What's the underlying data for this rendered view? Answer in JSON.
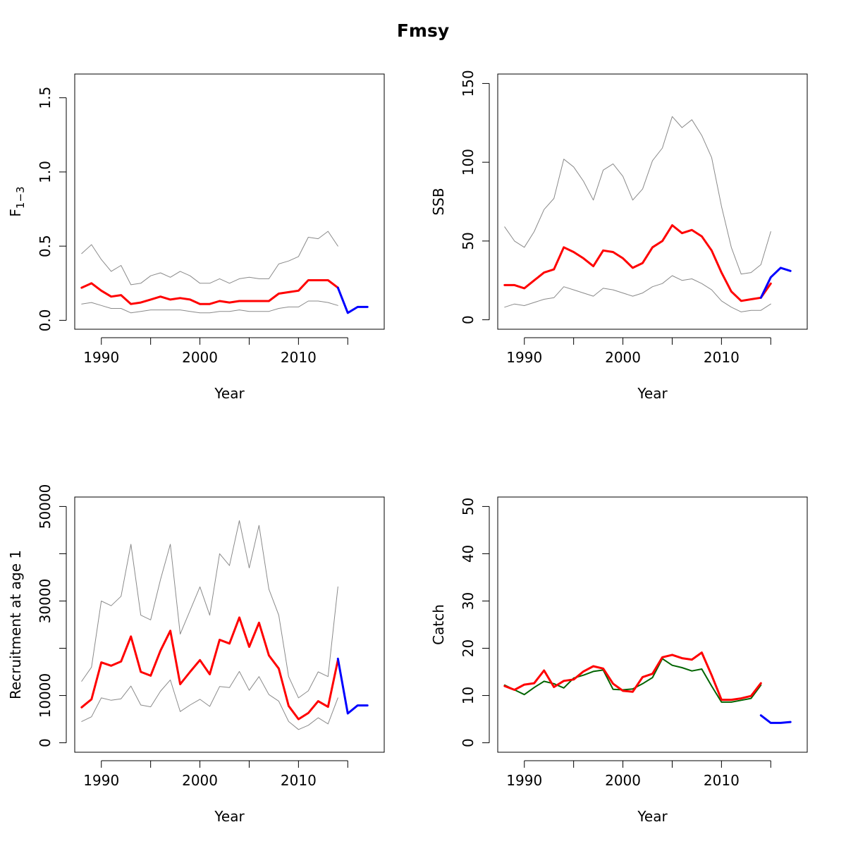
{
  "title": "Fmsy",
  "chart_data": [
    {
      "type": "line",
      "ylabel": "F",
      "ylabel_sub": "1−3",
      "xlabel": "Year",
      "xlim": [
        1987.3,
        2018.7
      ],
      "ylim": [
        -0.06,
        1.66
      ],
      "x_ticks": [
        1990,
        2000,
        2010
      ],
      "x_tick_labels": [
        "1990",
        "2000",
        "2010"
      ],
      "x_minor_ticks": [
        1995,
        2005,
        2015
      ],
      "y_ticks": [
        0,
        0.5,
        1,
        1.5
      ],
      "y_tick_labels": [
        "0.0",
        "0.5",
        "1.0",
        "1.5"
      ],
      "series": [
        {
          "role": "upper",
          "color": "#8a8a8a",
          "width": 1,
          "x": [
            1988,
            1989,
            1990,
            1991,
            1992,
            1993,
            1994,
            1995,
            1996,
            1997,
            1998,
            1999,
            2000,
            2001,
            2002,
            2003,
            2004,
            2005,
            2006,
            2007,
            2008,
            2009,
            2010,
            2011,
            2012,
            2013,
            2014
          ],
          "values": [
            0.45,
            0.51,
            0.41,
            0.33,
            0.37,
            0.24,
            0.25,
            0.3,
            0.32,
            0.29,
            0.33,
            0.3,
            0.25,
            0.25,
            0.28,
            0.25,
            0.28,
            0.29,
            0.28,
            0.28,
            0.38,
            0.4,
            0.43,
            0.56,
            0.55,
            0.6,
            0.5
          ]
        },
        {
          "role": "lower",
          "color": "#8a8a8a",
          "width": 1,
          "x": [
            1988,
            1989,
            1990,
            1991,
            1992,
            1993,
            1994,
            1995,
            1996,
            1997,
            1998,
            1999,
            2000,
            2001,
            2002,
            2003,
            2004,
            2005,
            2006,
            2007,
            2008,
            2009,
            2010,
            2011,
            2012,
            2013,
            2014
          ],
          "values": [
            0.11,
            0.12,
            0.1,
            0.08,
            0.08,
            0.05,
            0.06,
            0.07,
            0.07,
            0.07,
            0.07,
            0.06,
            0.05,
            0.05,
            0.06,
            0.06,
            0.07,
            0.06,
            0.06,
            0.06,
            0.08,
            0.09,
            0.09,
            0.13,
            0.13,
            0.12,
            0.1
          ]
        },
        {
          "role": "median",
          "color": "#ff0000",
          "width": 3,
          "x": [
            1988,
            1989,
            1990,
            1991,
            1992,
            1993,
            1994,
            1995,
            1996,
            1997,
            1998,
            1999,
            2000,
            2001,
            2002,
            2003,
            2004,
            2005,
            2006,
            2007,
            2008,
            2009,
            2010,
            2011,
            2012,
            2013,
            2014
          ],
          "values": [
            0.22,
            0.25,
            0.2,
            0.16,
            0.17,
            0.11,
            0.12,
            0.14,
            0.16,
            0.14,
            0.15,
            0.14,
            0.11,
            0.11,
            0.13,
            0.12,
            0.13,
            0.13,
            0.13,
            0.13,
            0.18,
            0.19,
            0.2,
            0.27,
            0.27,
            0.27,
            0.22
          ]
        },
        {
          "role": "projection",
          "color": "#0000ff",
          "width": 3,
          "x": [
            2014,
            2015,
            2016,
            2017
          ],
          "values": [
            0.22,
            0.05,
            0.09,
            0.09
          ]
        }
      ]
    },
    {
      "type": "line",
      "ylabel": "SSB",
      "xlabel": "Year",
      "xlim": [
        1987.3,
        2018.7
      ],
      "ylim": [
        -6,
        156
      ],
      "x_ticks": [
        1990,
        2000,
        2010
      ],
      "x_tick_labels": [
        "1990",
        "2000",
        "2010"
      ],
      "x_minor_ticks": [
        1995,
        2005,
        2015
      ],
      "y_ticks": [
        0,
        50,
        100,
        150
      ],
      "y_tick_labels": [
        "0",
        "50",
        "100",
        "150"
      ],
      "series": [
        {
          "role": "upper",
          "color": "#8a8a8a",
          "width": 1,
          "x": [
            1988,
            1989,
            1990,
            1991,
            1992,
            1993,
            1994,
            1995,
            1996,
            1997,
            1998,
            1999,
            2000,
            2001,
            2002,
            2003,
            2004,
            2005,
            2006,
            2007,
            2008,
            2009,
            2010,
            2011,
            2012,
            2013,
            2014,
            2015
          ],
          "values": [
            59,
            50,
            46,
            56,
            70,
            77,
            102,
            97,
            88,
            76,
            95,
            99,
            91,
            76,
            83,
            101,
            109,
            129,
            122,
            127,
            117,
            103,
            72,
            46,
            29,
            30,
            35,
            56
          ]
        },
        {
          "role": "lower",
          "color": "#8a8a8a",
          "width": 1,
          "x": [
            1988,
            1989,
            1990,
            1991,
            1992,
            1993,
            1994,
            1995,
            1996,
            1997,
            1998,
            1999,
            2000,
            2001,
            2002,
            2003,
            2004,
            2005,
            2006,
            2007,
            2008,
            2009,
            2010,
            2011,
            2012,
            2013,
            2014,
            2015
          ],
          "values": [
            8,
            10,
            9,
            11,
            13,
            14,
            21,
            19,
            17,
            15,
            20,
            19,
            17,
            15,
            17,
            21,
            23,
            28,
            25,
            26,
            23,
            19,
            12,
            8,
            5,
            6,
            6,
            10
          ]
        },
        {
          "role": "median",
          "color": "#ff0000",
          "width": 3,
          "x": [
            1988,
            1989,
            1990,
            1991,
            1992,
            1993,
            1994,
            1995,
            1996,
            1997,
            1998,
            1999,
            2000,
            2001,
            2002,
            2003,
            2004,
            2005,
            2006,
            2007,
            2008,
            2009,
            2010,
            2011,
            2012,
            2013,
            2014,
            2015
          ],
          "values": [
            22,
            22,
            20,
            25,
            30,
            32,
            46,
            43,
            39,
            34,
            44,
            43,
            39,
            33,
            36,
            46,
            50,
            60,
            55,
            57,
            53,
            44,
            30,
            18,
            12,
            13,
            14,
            23
          ]
        },
        {
          "role": "projection",
          "color": "#0000ff",
          "width": 3,
          "x": [
            2014,
            2015,
            2016,
            2017
          ],
          "values": [
            14,
            27,
            33,
            31
          ]
        }
      ]
    },
    {
      "type": "line",
      "ylabel": "Recruitment at age 1",
      "xlabel": "Year",
      "xlim": [
        1987.3,
        2018.7
      ],
      "ylim": [
        -2000,
        52000
      ],
      "x_ticks": [
        1990,
        2000,
        2010
      ],
      "x_tick_labels": [
        "1990",
        "2000",
        "2010"
      ],
      "x_minor_ticks": [
        1995,
        2005,
        2015
      ],
      "y_ticks": [
        0,
        10000,
        20000,
        30000,
        40000,
        50000
      ],
      "y_tick_labels": [
        "0",
        "10000",
        "",
        "30000",
        "",
        "50000"
      ],
      "series": [
        {
          "role": "upper",
          "color": "#8a8a8a",
          "width": 1,
          "x": [
            1988,
            1989,
            1990,
            1991,
            1992,
            1993,
            1994,
            1995,
            1996,
            1997,
            1998,
            1999,
            2000,
            2001,
            2002,
            2003,
            2004,
            2005,
            2006,
            2007,
            2008,
            2009,
            2010,
            2011,
            2012,
            2013,
            2014
          ],
          "values": [
            13000,
            16000,
            30000,
            29000,
            31000,
            42000,
            27000,
            26000,
            34500,
            42000,
            23000,
            28000,
            33000,
            27000,
            40000,
            37500,
            47000,
            37000,
            46000,
            32500,
            27000,
            14000,
            9500,
            11000,
            15000,
            14000,
            33000
          ]
        },
        {
          "role": "lower",
          "color": "#8a8a8a",
          "width": 1,
          "x": [
            1988,
            1989,
            1990,
            1991,
            1992,
            1993,
            1994,
            1995,
            1996,
            1997,
            1998,
            1999,
            2000,
            2001,
            2002,
            2003,
            2004,
            2005,
            2006,
            2007,
            2008,
            2009,
            2010,
            2011,
            2012,
            2013,
            2014
          ],
          "values": [
            4500,
            5500,
            9500,
            9000,
            9300,
            12000,
            8000,
            7600,
            10900,
            13300,
            6600,
            8000,
            9200,
            7700,
            11900,
            11700,
            15100,
            11100,
            14000,
            10200,
            8800,
            4500,
            2800,
            3700,
            5300,
            4000,
            9500
          ]
        },
        {
          "role": "median",
          "color": "#ff0000",
          "width": 3,
          "x": [
            1988,
            1989,
            1990,
            1991,
            1992,
            1993,
            1994,
            1995,
            1996,
            1997,
            1998,
            1999,
            2000,
            2001,
            2002,
            2003,
            2004,
            2005,
            2006,
            2007,
            2008,
            2009,
            2010,
            2011,
            2012,
            2013,
            2014
          ],
          "values": [
            7500,
            9200,
            17000,
            16300,
            17200,
            22500,
            15000,
            14200,
            19500,
            23700,
            12400,
            15000,
            17500,
            14500,
            21800,
            21000,
            26500,
            20300,
            25400,
            18500,
            15700,
            7800,
            5000,
            6300,
            8800,
            7600,
            17500
          ]
        },
        {
          "role": "projection",
          "color": "#0000ff",
          "width": 3,
          "x": [
            2014,
            2015,
            2016,
            2017
          ],
          "values": [
            17800,
            6200,
            7900,
            7900
          ]
        }
      ]
    },
    {
      "type": "line",
      "ylabel": "Catch",
      "xlabel": "Year",
      "xlim": [
        1987.3,
        2018.7
      ],
      "ylim": [
        -2,
        52
      ],
      "x_ticks": [
        1990,
        2000,
        2010
      ],
      "x_tick_labels": [
        "1990",
        "2000",
        "2010"
      ],
      "x_minor_ticks": [
        1995,
        2005,
        2015
      ],
      "y_ticks": [
        0,
        10,
        20,
        30,
        40,
        50
      ],
      "y_tick_labels": [
        "0",
        "10",
        "20",
        "30",
        "40",
        "50"
      ],
      "series": [
        {
          "role": "observed",
          "color": "#006400",
          "width": 2,
          "x": [
            1988,
            1989,
            1990,
            1991,
            1992,
            1993,
            1994,
            1995,
            1996,
            1997,
            1998,
            1999,
            2000,
            2001,
            2002,
            2003,
            2004,
            2005,
            2006,
            2007,
            2008,
            2009,
            2010,
            2011,
            2012,
            2013,
            2014
          ],
          "values": [
            12.2,
            11.2,
            10.2,
            11.7,
            13.0,
            12.5,
            11.6,
            13.7,
            14.3,
            15.1,
            15.4,
            11.3,
            11.2,
            11.4,
            12.5,
            13.8,
            17.8,
            16.4,
            15.9,
            15.2,
            15.6,
            12.0,
            8.6,
            8.6,
            9.0,
            9.4,
            12.2
          ]
        },
        {
          "role": "median",
          "color": "#ff0000",
          "width": 3,
          "x": [
            1988,
            1989,
            1990,
            1991,
            1992,
            1993,
            1994,
            1995,
            1996,
            1997,
            1998,
            1999,
            2000,
            2001,
            2002,
            2003,
            2004,
            2005,
            2006,
            2007,
            2008,
            2009,
            2010,
            2011,
            2012,
            2013,
            2014
          ],
          "values": [
            12.0,
            11.2,
            12.3,
            12.6,
            15.3,
            11.8,
            13.1,
            13.4,
            15.1,
            16.2,
            15.7,
            12.5,
            11.0,
            10.8,
            13.9,
            14.6,
            18.1,
            18.6,
            17.9,
            17.6,
            19.1,
            14.3,
            9.1,
            9.1,
            9.4,
            9.9,
            12.6
          ]
        },
        {
          "role": "projection",
          "color": "#0000ff",
          "width": 3,
          "x": [
            2014,
            2015,
            2016,
            2017
          ],
          "values": [
            5.8,
            4.2,
            4.2,
            4.4
          ]
        }
      ]
    }
  ]
}
